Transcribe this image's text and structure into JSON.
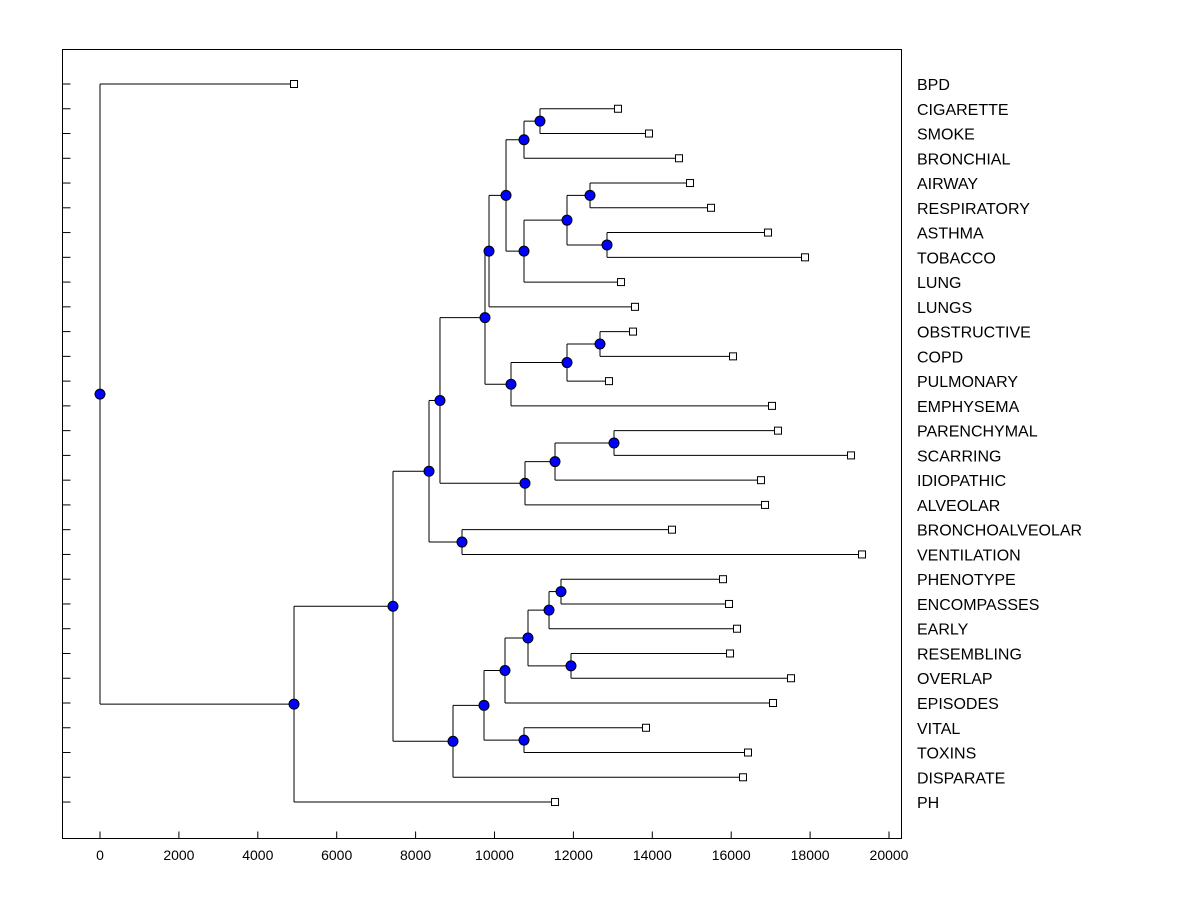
{
  "chart_data": {
    "type": "dendrogram",
    "title": "",
    "xlabel": "",
    "ylabel": "",
    "xlim": [
      -900,
      20300
    ],
    "xticks": [
      0,
      2000,
      4000,
      6000,
      8000,
      10000,
      12000,
      14000,
      16000,
      18000,
      20000
    ],
    "grid": false,
    "colors": {
      "node_fill": "#0000ff",
      "leaf_fill": "#ffffff",
      "line": "#000000"
    },
    "tree": {
      "value": 0,
      "children": [
        {
          "label": "BPD",
          "value": 4918
        },
        {
          "value": 4918,
          "children": [
            {
              "value": 7427,
              "children": [
                {
                  "value": 8340,
                  "children": [
                    {
                      "value": 8618,
                      "children": [
                        {
                          "value": 9759,
                          "children": [
                            {
                              "value": 9861,
                              "children": [
                                {
                                  "value": 10292,
                                  "children": [
                                    {
                                      "value": 10748,
                                      "children": [
                                        {
                                          "value": 11153,
                                          "children": [
                                            {
                                              "label": "CIGARETTE",
                                              "value": 13130
                                            },
                                            {
                                              "label": "SMOKE",
                                              "value": 13916
                                            }
                                          ]
                                        },
                                        {
                                          "label": "BRONCHIAL",
                                          "value": 14677
                                        }
                                      ]
                                    },
                                    {
                                      "value": 10748,
                                      "children": [
                                        {
                                          "value": 11838,
                                          "children": [
                                            {
                                              "value": 12421,
                                              "children": [
                                                {
                                                  "label": "AIRWAY",
                                                  "value": 14956
                                                },
                                                {
                                                  "label": "RESPIRATORY",
                                                  "value": 15488
                                                }
                                              ]
                                            },
                                            {
                                              "value": 12852,
                                              "children": [
                                                {
                                                  "label": "ASTHMA",
                                                  "value": 16933
                                                },
                                                {
                                                  "label": "TOBACCO",
                                                  "value": 17871
                                                }
                                              ]
                                            }
                                          ]
                                        },
                                        {
                                          "label": "LUNG",
                                          "value": 13207
                                        }
                                      ]
                                    }
                                  ]
                                },
                                {
                                  "label": "LUNGS",
                                  "value": 13561
                                }
                              ]
                            },
                            {
                              "value": 10418,
                              "children": [
                                {
                                  "value": 11838,
                                  "children": [
                                    {
                                      "value": 12674,
                                      "children": [
                                        {
                                          "label": "OBSTRUCTIVE",
                                          "value": 13511
                                        },
                                        {
                                          "label": "COPD",
                                          "value": 16046
                                        }
                                      ]
                                    },
                                    {
                                      "label": "PULMONARY",
                                      "value": 12902
                                    }
                                  ]
                                },
                                {
                                  "label": "EMPHYSEMA",
                                  "value": 17034
                                }
                              ]
                            }
                          ]
                        },
                        {
                          "value": 10773,
                          "children": [
                            {
                              "value": 11534,
                              "children": [
                                {
                                  "value": 13029,
                                  "children": [
                                    {
                                      "label": "PARENCHYMAL",
                                      "value": 17186
                                    },
                                    {
                                      "label": "SCARRING",
                                      "value": 19037
                                    }
                                  ]
                                },
                                {
                                  "label": "IDIOPATHIC",
                                  "value": 16755
                                }
                              ]
                            },
                            {
                              "label": "ALVEOLAR",
                              "value": 16857
                            }
                          ]
                        }
                      ]
                    },
                    {
                      "value": 9176,
                      "children": [
                        {
                          "label": "BRONCHOALVEOLAR",
                          "value": 14499
                        },
                        {
                          "label": "VENTILATION",
                          "value": 19316
                        }
                      ]
                    }
                  ]
                },
                {
                  "value": 8948,
                  "children": [
                    {
                      "value": 9734,
                      "children": [
                        {
                          "value": 10266,
                          "children": [
                            {
                              "value": 10849,
                              "children": [
                                {
                                  "value": 11382,
                                  "children": [
                                    {
                                      "value": 11686,
                                      "children": [
                                        {
                                          "label": "PHENOTYPE",
                                          "value": 15792
                                        },
                                        {
                                          "label": "ENCOMPASSES",
                                          "value": 15944
                                        }
                                      ]
                                    },
                                    {
                                      "label": "EARLY",
                                      "value": 16147
                                    }
                                  ]
                                },
                                {
                                  "value": 11939,
                                  "children": [
                                    {
                                      "label": "RESEMBLING",
                                      "value": 15970
                                    },
                                    {
                                      "label": "OVERLAP",
                                      "value": 17516
                                    }
                                  ]
                                }
                              ]
                            },
                            {
                              "label": "EPISODES",
                              "value": 17060
                            }
                          ]
                        },
                        {
                          "value": 10748,
                          "children": [
                            {
                              "label": "VITAL",
                              "value": 13840
                            },
                            {
                              "label": "TOXINS",
                              "value": 16426
                            }
                          ]
                        }
                      ]
                    },
                    {
                      "label": "DISPARATE",
                      "value": 16299
                    }
                  ]
                }
              ]
            },
            {
              "label": "PH",
              "value": 11534
            }
          ]
        }
      ]
    }
  }
}
